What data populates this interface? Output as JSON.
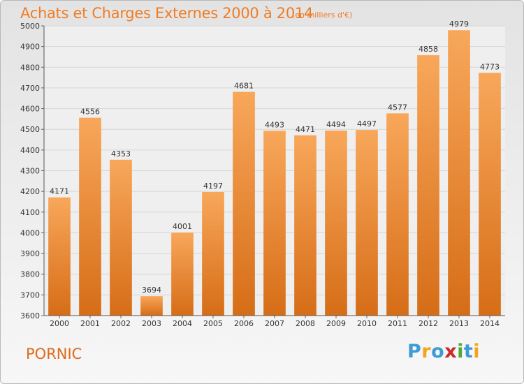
{
  "header": {
    "title": "Achats et Charges Externes 2000 à 2014",
    "unit": "(en milliers d'€)"
  },
  "footer": {
    "place": "PORNIC",
    "logo_letters": [
      "P",
      "r",
      "o",
      "x",
      "i",
      "t",
      "i"
    ],
    "logo_colors": [
      "#3d9bd6",
      "#f2a518",
      "#3d9bd6",
      "#cc2a2a",
      "#4ea83a",
      "#3d9bd6",
      "#f2a518"
    ]
  },
  "colors": {
    "bar_top": "#f8a75a",
    "bar_bottom": "#d66d17",
    "title": "#f07c25",
    "grid": "#d6d6d6",
    "axis_text": "#333333"
  },
  "chart_data": {
    "type": "bar",
    "categories": [
      "2000",
      "2001",
      "2002",
      "2003",
      "2004",
      "2005",
      "2006",
      "2007",
      "2008",
      "2009",
      "2010",
      "2011",
      "2012",
      "2013",
      "2014"
    ],
    "values": [
      4171,
      4556,
      4353,
      3694,
      4001,
      4197,
      4681,
      4493,
      4471,
      4494,
      4497,
      4577,
      4858,
      4979,
      4773
    ],
    "ylim": [
      3600,
      5000
    ],
    "yticks": [
      3600,
      3700,
      3800,
      3900,
      4000,
      4100,
      4200,
      4300,
      4400,
      4500,
      4600,
      4700,
      4800,
      4900,
      5000
    ],
    "grid": true,
    "data_labels": true
  }
}
